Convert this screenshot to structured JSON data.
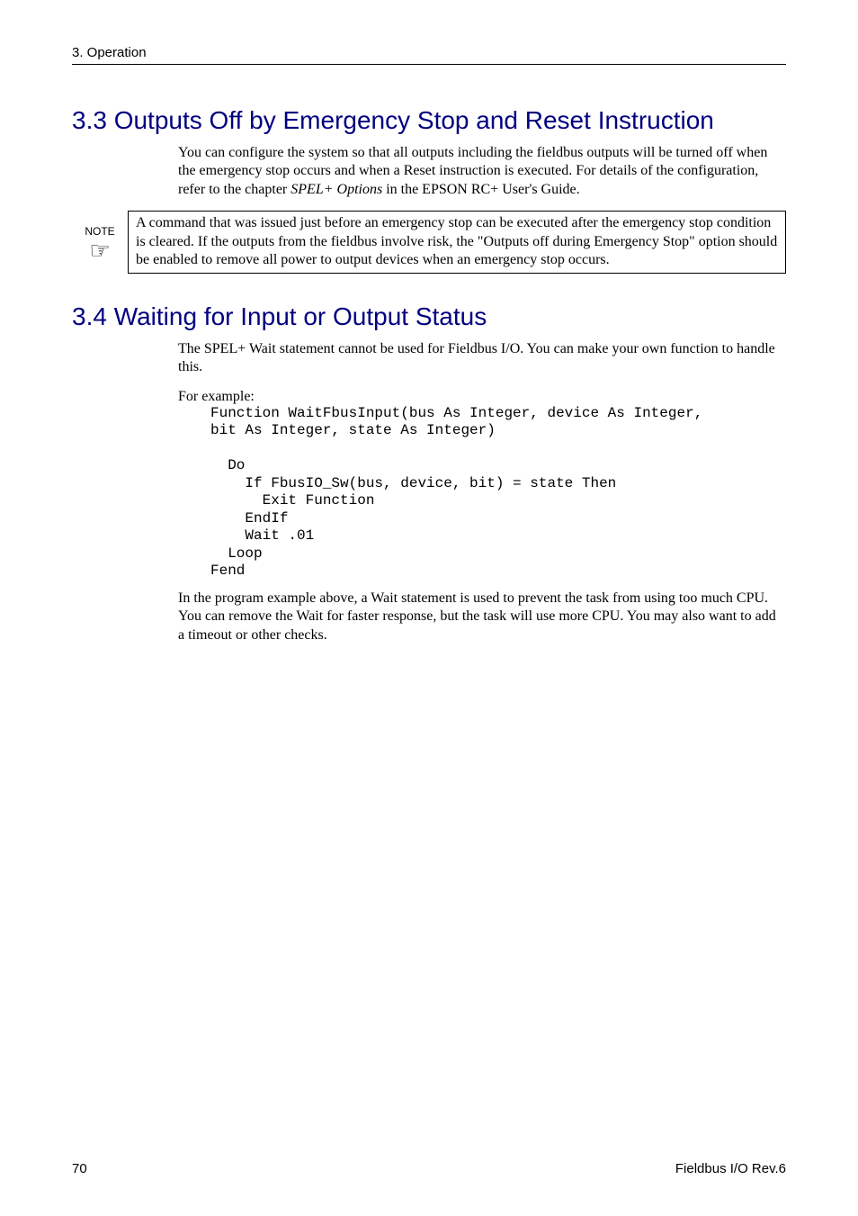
{
  "header": {
    "chapter": "3. Operation"
  },
  "section33": {
    "title": "3.3 Outputs Off by Emergency Stop and Reset Instruction",
    "para": "You can configure the system so that all outputs including the fieldbus outputs will be turned off when the emergency stop occurs and when a Reset instruction is executed.  For details of the configuration, refer to the chapter ",
    "para_italic": "SPEL+ Options",
    "para_after": " in the EPSON RC+ User's Guide."
  },
  "note": {
    "label": "NOTE",
    "icon": "☞",
    "text": "A command that was issued just before an emergency stop can be executed after the emergency stop condition is cleared.  If the outputs from the fieldbus involve risk, the \"Outputs off during Emergency Stop\" option should be enabled to remove all power to output devices when an emergency stop occurs."
  },
  "section34": {
    "title": "3.4 Waiting for Input or Output Status",
    "intro": "The SPEL+ Wait statement cannot be used for Fieldbus I/O.  You can make your own function to handle this.",
    "for_example": "For example:",
    "code": "Function WaitFbusInput(bus As Integer, device As Integer,\nbit As Integer, state As Integer)\n\n  Do\n    If FbusIO_Sw(bus, device, bit) = state Then\n      Exit Function\n    EndIf\n    Wait .01\n  Loop\nFend",
    "outro": "In the program example above, a Wait statement is used to prevent the task from using too much CPU.  You can remove the Wait for faster response, but the task will use more CPU.  You may also want to add a timeout or other checks."
  },
  "footer": {
    "page": "70",
    "doc": "Fieldbus I/O Rev.6"
  },
  "colors": {
    "heading": "#000080",
    "text": "#000000",
    "background": "#ffffff"
  },
  "typography": {
    "body_font": "Times New Roman",
    "sans_font": "Arial",
    "mono_font": "Courier New",
    "heading_size_pt": 21,
    "body_size_pt": 12,
    "header_size_pt": 11
  }
}
